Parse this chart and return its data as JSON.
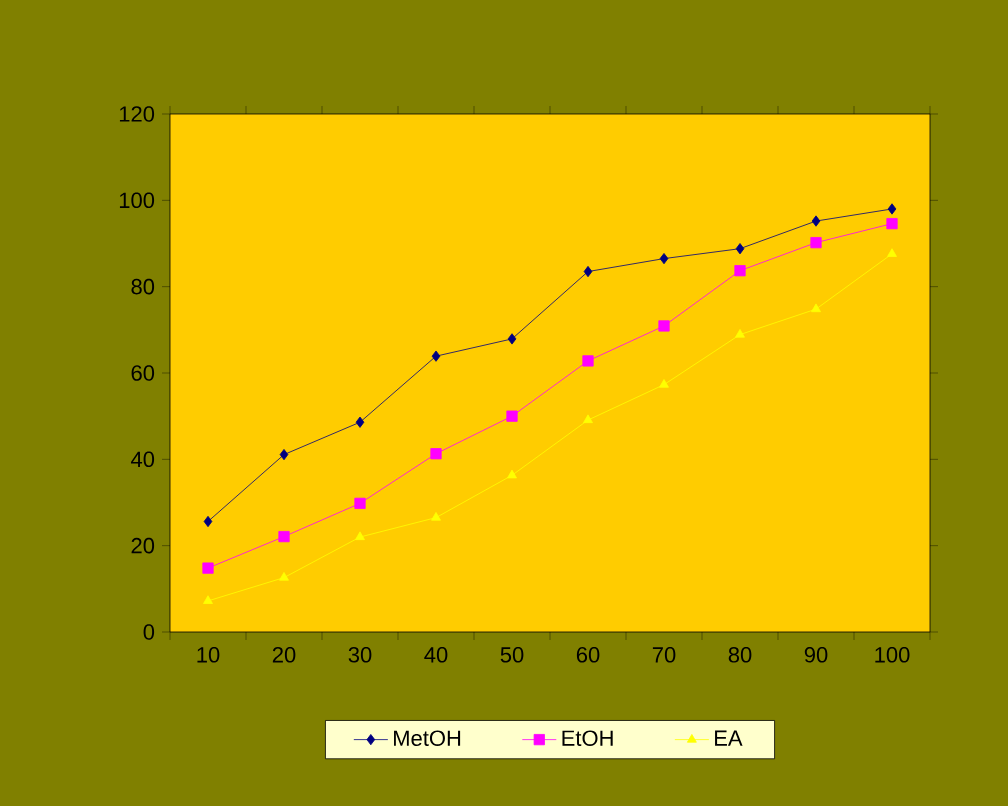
{
  "chart_data": {
    "type": "line",
    "categories": [
      "10",
      "20",
      "30",
      "40",
      "50",
      "60",
      "70",
      "80",
      "90",
      "100"
    ],
    "ylim": [
      0,
      120
    ],
    "yticks": [
      0,
      20,
      40,
      60,
      80,
      100,
      120
    ],
    "legend": "bottom",
    "line_style": "solid",
    "series": [
      {
        "name": "MetOH",
        "color": "#000080",
        "marker": "diamond",
        "values": [
          25.6,
          41.1,
          48.6,
          63.9,
          67.9,
          83.5,
          86.5,
          88.8,
          95.2,
          98
        ]
      },
      {
        "name": "EtOH",
        "color": "#ff00ff",
        "marker": "square",
        "values": [
          14.8,
          22.1,
          29.8,
          41.3,
          50,
          62.8,
          70.9,
          83.7,
          90.2,
          94.6
        ]
      },
      {
        "name": "EA",
        "color": "#ffff00",
        "marker": "triangle",
        "values": [
          7.2,
          12.6,
          22,
          26.5,
          36.3,
          49.1,
          57.3,
          68.9,
          74.8,
          87.6
        ]
      }
    ]
  }
}
